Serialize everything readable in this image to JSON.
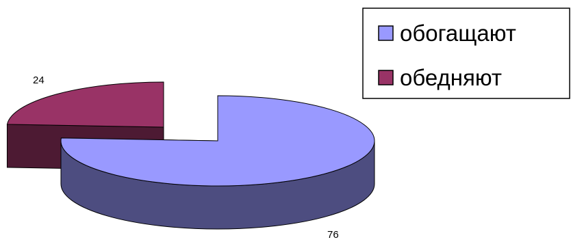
{
  "chart_data": {
    "type": "pie",
    "style": "3d-exploded",
    "categories": [
      "обогащают",
      "обедняют"
    ],
    "values": [
      76,
      24
    ],
    "colors": [
      "#9999ff",
      "#993366"
    ],
    "side_colors": [
      "#4d4d80",
      "#4d1a33"
    ],
    "legend": {
      "placement": "top-right",
      "entries": [
        "обогащают",
        "обедняют"
      ]
    },
    "data_labels": [
      "76",
      "24"
    ],
    "title": ""
  }
}
